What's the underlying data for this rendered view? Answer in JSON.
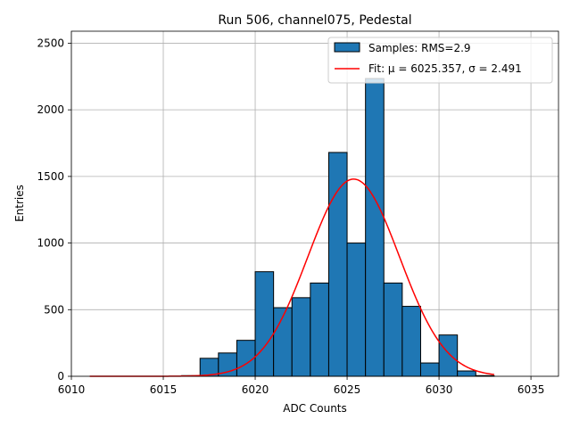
{
  "chart_data": {
    "type": "bar",
    "title": "Run 506, channel075, Pedestal",
    "xlabel": "ADC Counts",
    "ylabel": "Entries",
    "xlim": [
      6010,
      6036.5
    ],
    "ylim": [
      0,
      2590
    ],
    "xticks": [
      6010,
      6015,
      6020,
      6025,
      6030,
      6035
    ],
    "yticks": [
      0,
      500,
      1000,
      1500,
      2000,
      2500
    ],
    "grid": true,
    "legend_position": "top-right",
    "colors": {
      "bar_fill": "#1f77b4",
      "bar_edge": "#000000",
      "fit_line": "#ff0000",
      "grid": "#b0b0b0"
    },
    "histogram": {
      "name": "Samples: RMS=2.9",
      "bin_width": 1,
      "bin_starts": [
        6016,
        6017,
        6018,
        6019,
        6020,
        6021,
        6022,
        6023,
        6024,
        6025,
        6026,
        6027,
        6028,
        6029,
        6030,
        6031,
        6032
      ],
      "counts": [
        5,
        135,
        175,
        270,
        785,
        515,
        590,
        700,
        1680,
        1000,
        2235,
        700,
        525,
        100,
        310,
        40,
        5
      ]
    },
    "fit": {
      "name": "Fit: μ = 6025.357, σ = 2.491",
      "mu": 6025.357,
      "sigma": 2.491,
      "amplitude": 1480,
      "x_range": [
        6011,
        6033
      ]
    }
  }
}
